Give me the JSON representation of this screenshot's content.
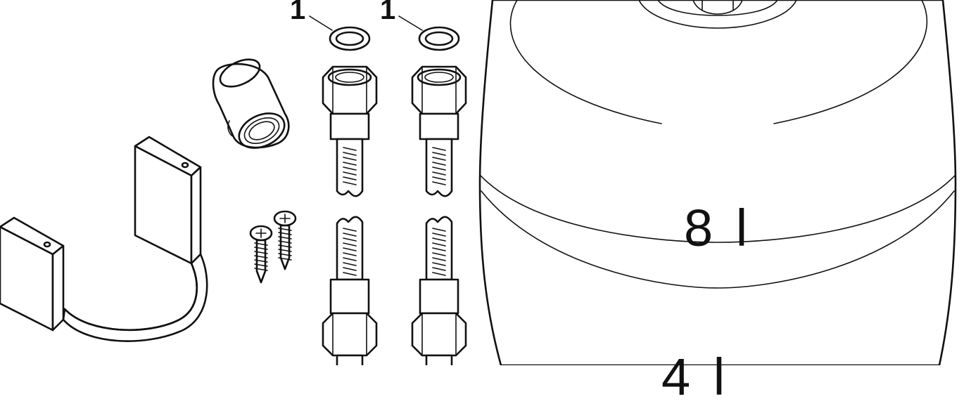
{
  "callouts": [
    {
      "id": "seal-left",
      "text": "1"
    },
    {
      "id": "seal-right",
      "text": "1"
    }
  ],
  "tank": {
    "volume_label": "8 l",
    "lower_label": "4 l"
  },
  "parts": {
    "seal_rings": 2,
    "hex_nut_hoses": 2,
    "screws": 2,
    "threaded_sleeve": 1,
    "wall_bracket": 1,
    "expansion_tank": 1
  },
  "colors": {
    "line": "#111111",
    "background": "#ffffff"
  }
}
